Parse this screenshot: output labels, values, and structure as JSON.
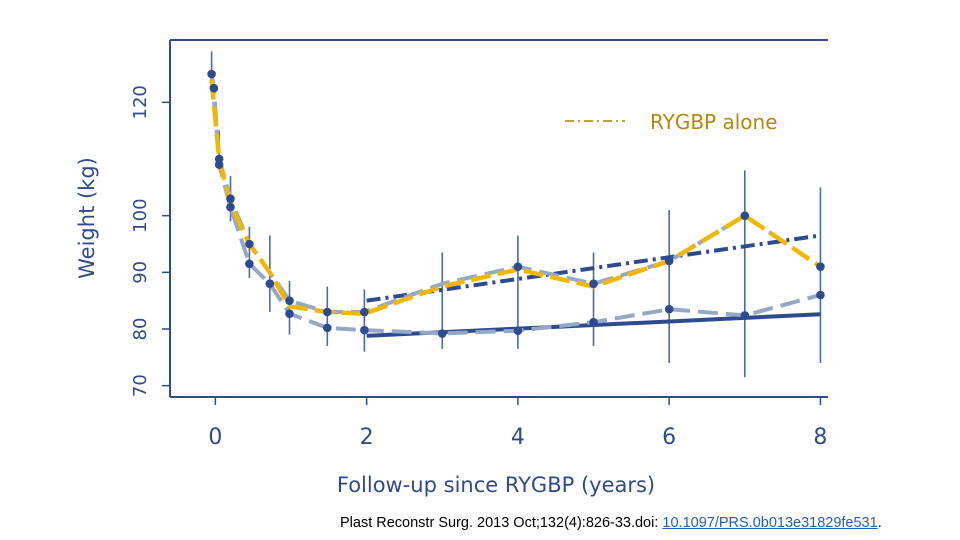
{
  "chart_data": {
    "type": "line",
    "xlabel": "Follow-up since RYGBP (years)",
    "ylabel": "Weight (kg)",
    "xlim": [
      -0.6,
      8.1
    ],
    "ylim": [
      68,
      131
    ],
    "xticks": [
      0,
      2,
      4,
      6,
      8
    ],
    "yticks": [
      70,
      80,
      90,
      100,
      120
    ],
    "legend": {
      "position": "top-right",
      "label": "RYGBP alone"
    },
    "colors": {
      "dark_blue": "#2e4b8f",
      "light_blue": "#94a8c8",
      "gold": "#f2b705",
      "axis": "#2e4b8f"
    },
    "series": [
      {
        "name": "RYGBP alone",
        "style": "dash-dot",
        "x": [
          -0.05,
          0.05,
          0.2,
          0.45,
          0.72,
          0.98,
          1.48,
          1.97,
          3.0,
          4.0,
          5.0,
          6.0,
          7.0,
          8.0
        ],
        "y": [
          125,
          110,
          103,
          95,
          90,
          85,
          83,
          83,
          88,
          91,
          88,
          92,
          100,
          91
        ]
      },
      {
        "style": "dashed",
        "x": [
          -0.05,
          -0.02,
          0.05,
          0.2,
          0.45,
          0.72,
          0.98,
          1.48,
          1.97,
          3.0,
          4.0,
          5.0,
          6.0,
          7.0,
          8.0
        ],
        "y": [
          125,
          122.5,
          109,
          101.5,
          91.5,
          88,
          82.7,
          80.2,
          79.8,
          79.2,
          79.7,
          81.2,
          83.5,
          82.4,
          86
        ]
      },
      {
        "style": "dashed",
        "x": [
          -0.05,
          0.05,
          0.2,
          0.45,
          0.72,
          0.98,
          1.48,
          1.97,
          3.0,
          4.0,
          5.0,
          6.0,
          7.0,
          8.0
        ],
        "y": [
          124,
          110,
          102,
          95,
          90,
          84,
          83,
          82.7,
          87.5,
          90.5,
          87.5,
          92,
          100,
          91
        ]
      }
    ],
    "trend_lines": [
      {
        "style": "dash-dot",
        "x": [
          2.0,
          8.0
        ],
        "y": [
          85,
          96.5
        ]
      },
      {
        "style": "solid",
        "x": [
          2.0,
          8.0
        ],
        "y": [
          78.8,
          82.6
        ]
      }
    ],
    "points": {
      "x": [
        -0.05,
        -0.02,
        0.05,
        0.05,
        0.2,
        0.2,
        0.45,
        0.45,
        0.72,
        0.98,
        0.98,
        1.48,
        1.48,
        1.97,
        1.97,
        3.0,
        4.0,
        4.0,
        5.0,
        5.0,
        6.0,
        6.0,
        7.0,
        7.0,
        8.0,
        8.0
      ],
      "y": [
        125,
        122.5,
        110,
        109,
        103,
        101.5,
        95,
        91.5,
        88,
        85,
        82.7,
        83,
        80.2,
        83,
        79.8,
        79.2,
        91,
        79.7,
        88,
        81.2,
        92,
        83.5,
        100,
        82.4,
        91,
        86
      ]
    },
    "error_bars": [
      {
        "x": -0.05,
        "low": 123,
        "high": 129
      },
      {
        "x": 0.05,
        "low": 108,
        "high": 115
      },
      {
        "x": 0.2,
        "low": 99,
        "high": 107
      },
      {
        "x": 0.45,
        "low": 89,
        "high": 98
      },
      {
        "x": 0.72,
        "low": 83,
        "high": 96.5
      },
      {
        "x": 0.98,
        "low": 79,
        "high": 88.5
      },
      {
        "x": 1.48,
        "low": 77,
        "high": 87.5
      },
      {
        "x": 1.97,
        "low": 76,
        "high": 87
      },
      {
        "x": 3.0,
        "low": 76.5,
        "high": 93.5
      },
      {
        "x": 4.0,
        "low": 76.5,
        "high": 96.5
      },
      {
        "x": 5.0,
        "low": 77,
        "high": 93.5
      },
      {
        "x": 6.0,
        "low": 74,
        "high": 101
      },
      {
        "x": 7.0,
        "low": 71.5,
        "high": 108
      },
      {
        "x": 8.0,
        "low": 74,
        "high": 105
      }
    ]
  },
  "citation": {
    "text": "Plast Reconstr Surg. 2013 Oct;132(4):826-33.doi: ",
    "link_text": "10.1097/PRS.0b013e31829fe531",
    "suffix": "."
  }
}
